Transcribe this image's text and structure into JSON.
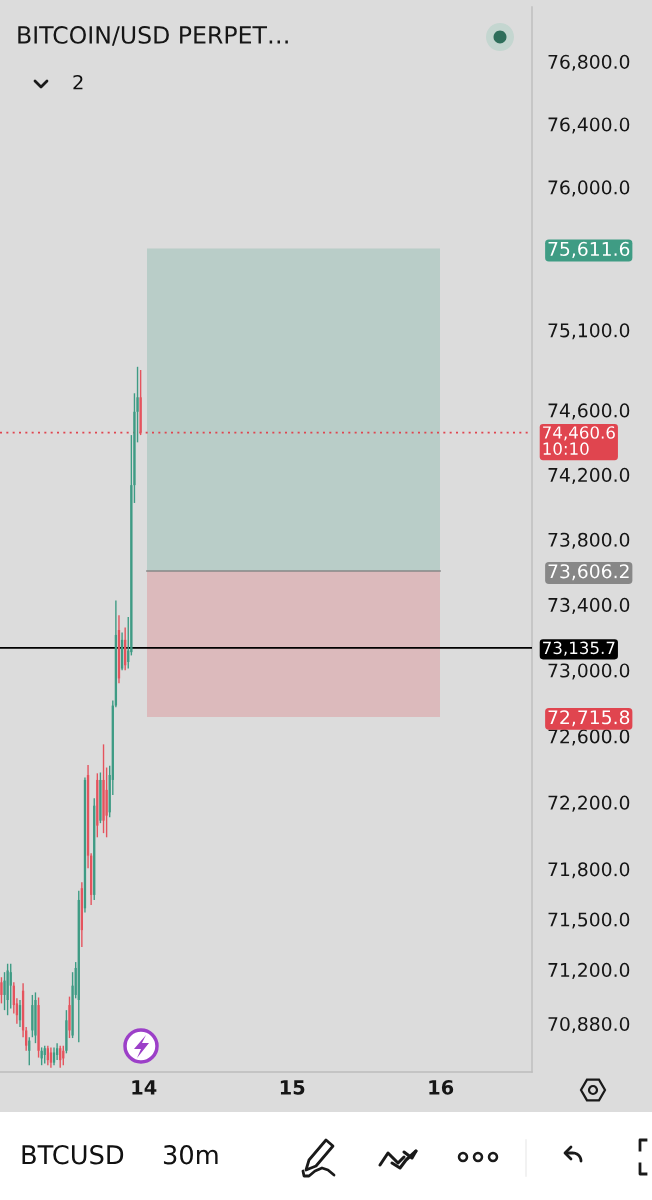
{
  "chart_data": {
    "type": "candlestick",
    "title": "BITCOIN/USD PERPET…",
    "x": [
      13.0417,
      13.0625,
      13.0833,
      13.1042,
      13.125,
      13.1458,
      13.1667,
      13.1875,
      13.2083,
      13.2292,
      13.25,
      13.2708,
      13.2917,
      13.3125,
      13.3333,
      13.3542,
      13.375,
      13.3958,
      13.4167,
      13.4375,
      13.4583,
      13.4792,
      13.5,
      13.5208,
      13.5417,
      13.5625,
      13.5833,
      13.6042,
      13.625,
      13.6458,
      13.6667,
      13.6875,
      13.7083,
      13.7292,
      13.75,
      13.7708,
      13.7917,
      13.8125,
      13.8333,
      13.8542,
      13.875,
      13.8958,
      13.9167,
      13.9375,
      13.9583,
      13.9792
    ],
    "ohlc": [
      [
        71125,
        71155,
        71000,
        71050
      ],
      [
        71050,
        71185,
        70960,
        71135
      ],
      [
        71020,
        71235,
        70930,
        71195
      ],
      [
        71105,
        71235,
        70970,
        71185
      ],
      [
        71105,
        71125,
        70940,
        70990
      ],
      [
        71000,
        71030,
        70880,
        70930
      ],
      [
        70900,
        71020,
        70860,
        70990
      ],
      [
        71075,
        71120,
        70800,
        70840
      ],
      [
        70840,
        70860,
        70720,
        70750
      ],
      [
        70720,
        70800,
        70635,
        70780
      ],
      [
        70840,
        71050,
        70800,
        70990
      ],
      [
        70810,
        71065,
        70765,
        71020
      ],
      [
        70990,
        71035,
        70680,
        70720
      ],
      [
        70675,
        70740,
        70635,
        70720
      ],
      [
        70695,
        70750,
        70645,
        70735
      ],
      [
        70735,
        70750,
        70635,
        70665
      ],
      [
        70710,
        70740,
        70620,
        70650
      ],
      [
        70650,
        70740,
        70635,
        70710
      ],
      [
        70695,
        70765,
        70665,
        70735
      ],
      [
        70735,
        70750,
        70620,
        70665
      ],
      [
        70720,
        70750,
        70635,
        70675
      ],
      [
        70720,
        70960,
        70705,
        70900
      ],
      [
        70990,
        71040,
        70795,
        70840
      ],
      [
        70810,
        71185,
        70795,
        71105
      ],
      [
        71050,
        71245,
        71030,
        71210
      ],
      [
        71020,
        71670,
        70770,
        71615
      ],
      [
        71685,
        71720,
        71335,
        71435
      ],
      [
        71565,
        72350,
        71540,
        72335
      ],
      [
        72365,
        72425,
        71805,
        71880
      ],
      [
        71880,
        71895,
        71585,
        71645
      ],
      [
        71645,
        72225,
        71615,
        72180
      ],
      [
        72335,
        72375,
        71990,
        72060
      ],
      [
        72090,
        72380,
        72075,
        72335
      ],
      [
        72335,
        72550,
        72015,
        72090
      ],
      [
        72275,
        72410,
        71990,
        72120
      ],
      [
        72140,
        72420,
        72110,
        72365
      ],
      [
        72335,
        72815,
        72245,
        72785
      ],
      [
        72785,
        73425,
        72775,
        73215
      ],
      [
        73245,
        73335,
        72920,
        72950
      ],
      [
        73010,
        73230,
        73000,
        73185
      ],
      [
        73185,
        73260,
        73000,
        73030
      ],
      [
        73050,
        73325,
        73010,
        73120
      ],
      [
        73110,
        74445,
        73090,
        74135
      ],
      [
        74135,
        74705,
        74025,
        74590
      ],
      [
        74590,
        74870,
        74400,
        74680
      ],
      [
        74680,
        74850,
        74445,
        74460.6
      ]
    ],
    "colors": [
      "#e5535d",
      "#3e9b84",
      "#3e9b84",
      "#3e9b84",
      "#e5535d",
      "#e5535d",
      "#3e9b84",
      "#e5535d",
      "#e5535d",
      "#3e9b84",
      "#3e9b84",
      "#3e9b84",
      "#e5535d",
      "#3e9b84",
      "#3e9b84",
      "#e5535d",
      "#e5535d",
      "#3e9b84",
      "#3e9b84",
      "#e5535d",
      "#e5535d",
      "#3e9b84",
      "#e5535d",
      "#3e9b84",
      "#3e9b84",
      "#3e9b84",
      "#e5535d",
      "#3e9b84",
      "#e5535d",
      "#e5535d",
      "#3e9b84",
      "#e5535d",
      "#3e9b84",
      "#e5535d",
      "#e5535d",
      "#3e9b84",
      "#3e9b84",
      "#3e9b84",
      "#e5535d",
      "#3e9b84",
      "#e5535d",
      "#3e9b84",
      "#3e9b84",
      "#3e9b84",
      "#3e9b84",
      "#e5535d"
    ],
    "log": true,
    "xlim": [
      13.032,
      16.615
    ],
    "xticks": [
      14,
      15,
      16
    ],
    "ylim": [
      70595,
      77150
    ],
    "yticks": [
      {
        "value": 70880,
        "label": "70,880.0"
      },
      {
        "value": 71200,
        "label": "71,200.0"
      },
      {
        "value": 71500,
        "label": "71,500.0"
      },
      {
        "value": 71800,
        "label": "71,800.0"
      },
      {
        "value": 72200,
        "label": "72,200.0"
      },
      {
        "value": 72600,
        "label": "72,600.0"
      },
      {
        "value": 72715.8,
        "label": "72,715.8"
      },
      {
        "value": 73000,
        "label": "73,000.0"
      },
      {
        "value": 73400,
        "label": "73,400.0"
      },
      {
        "value": 73606.2,
        "label": "73,606.2"
      },
      {
        "value": 73800,
        "label": "73,800.0"
      },
      {
        "value": 74200,
        "label": "74,200.0"
      },
      {
        "value": 74600,
        "label": "74,600.0"
      },
      {
        "value": 75100,
        "label": "75,100.0"
      },
      {
        "value": 75611.6,
        "label": "75,611.6"
      },
      {
        "value": 76000,
        "label": "76,000.0"
      },
      {
        "value": 76400,
        "label": "76,400.0"
      },
      {
        "value": 76800,
        "label": "76,800.0"
      }
    ],
    "bands": [
      {
        "axis": "y",
        "from": 73606.2,
        "to": 75611.6,
        "color": "#3f9c84"
      },
      {
        "axis": "y",
        "from": 73606.2,
        "to": 72715.8,
        "color": "#e0454f"
      }
    ],
    "ref_lines": [
      {
        "axis": "y",
        "value": 74460.6,
        "label": "74,460.6\n10:10",
        "color": "#e0454f",
        "line_style": "dotted"
      },
      {
        "axis": "y",
        "value": 73606.2,
        "color": "#878787",
        "line_style": "solid"
      },
      {
        "axis": "y",
        "value": 73135.7,
        "label": "73,135.7",
        "color": "#000000",
        "line_style": "solid"
      }
    ],
    "annotations": [
      "2",
      "BTCUSD",
      "30m"
    ]
  }
}
